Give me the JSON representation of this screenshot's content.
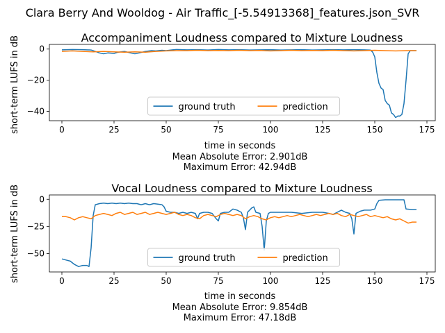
{
  "figure": {
    "suptitle": "Clara Berry And Wooldog - Air Traffic_[-5.54913368]_features.json_SVR"
  },
  "chart_data": [
    {
      "type": "line",
      "title": "Accompaniment Loudness compared to Mixture Loudness",
      "xlabel": "time in seconds",
      "ylabel": "short-term LUFS in dB",
      "xlim": [
        -6,
        179
      ],
      "ylim": [
        -46,
        3
      ],
      "xticks": [
        0,
        25,
        50,
        75,
        100,
        125,
        150,
        175
      ],
      "yticks": [
        0,
        -20,
        -40
      ],
      "legend": "lower-center",
      "stats": [
        "Mean Absolute Error: 2.901dB",
        "Maximum Error: 42.94dB"
      ],
      "series": [
        {
          "name": "ground truth",
          "color": "#1f77b4",
          "points": [
            [
              0,
              -0.5
            ],
            [
              5,
              -0.3
            ],
            [
              10,
              -0.4
            ],
            [
              14,
              -0.6
            ],
            [
              16,
              -1.5
            ],
            [
              18,
              -2.5
            ],
            [
              20,
              -3
            ],
            [
              22,
              -2.5
            ],
            [
              25,
              -2.8
            ],
            [
              27,
              -2
            ],
            [
              30,
              -1.5
            ],
            [
              33,
              -2.5
            ],
            [
              35,
              -3
            ],
            [
              37,
              -2.5
            ],
            [
              40,
              -1.5
            ],
            [
              43,
              -1
            ],
            [
              45,
              -1.2
            ],
            [
              48,
              -0.8
            ],
            [
              50,
              -1
            ],
            [
              53,
              -0.5
            ],
            [
              55,
              -0.3
            ],
            [
              60,
              -0.5
            ],
            [
              65,
              -0.4
            ],
            [
              70,
              -0.6
            ],
            [
              75,
              -0.3
            ],
            [
              80,
              -0.5
            ],
            [
              85,
              -0.4
            ],
            [
              90,
              -0.6
            ],
            [
              95,
              -0.5
            ],
            [
              100,
              -0.4
            ],
            [
              105,
              -0.6
            ],
            [
              110,
              -0.5
            ],
            [
              115,
              -0.4
            ],
            [
              120,
              -0.6
            ],
            [
              125,
              -0.5
            ],
            [
              130,
              -0.4
            ],
            [
              135,
              -0.5
            ],
            [
              140,
              -0.4
            ],
            [
              145,
              -0.5
            ],
            [
              148,
              -0.7
            ],
            [
              149,
              -2
            ],
            [
              150,
              -5
            ],
            [
              151,
              -15
            ],
            [
              152,
              -22
            ],
            [
              153,
              -25
            ],
            [
              154,
              -26
            ],
            [
              155,
              -33
            ],
            [
              156,
              -35
            ],
            [
              157,
              -36
            ],
            [
              158,
              -41
            ],
            [
              159,
              -42
            ],
            [
              160,
              -44
            ],
            [
              161,
              -43
            ],
            [
              162,
              -43
            ],
            [
              163,
              -42
            ],
            [
              164,
              -35
            ],
            [
              165,
              -20
            ],
            [
              166,
              -3
            ],
            [
              167,
              -1
            ],
            [
              170,
              -1
            ]
          ]
        },
        {
          "name": "prediction",
          "color": "#ff7f0e",
          "points": [
            [
              0,
              -1.5
            ],
            [
              5,
              -1.2
            ],
            [
              10,
              -1.5
            ],
            [
              15,
              -1.8
            ],
            [
              20,
              -1.5
            ],
            [
              25,
              -1.8
            ],
            [
              30,
              -2
            ],
            [
              35,
              -1.8
            ],
            [
              40,
              -2
            ],
            [
              45,
              -1.5
            ],
            [
              50,
              -1.2
            ],
            [
              55,
              -1
            ],
            [
              60,
              -1
            ],
            [
              65,
              -0.8
            ],
            [
              70,
              -1
            ],
            [
              75,
              -0.9
            ],
            [
              80,
              -1
            ],
            [
              85,
              -0.8
            ],
            [
              90,
              -1
            ],
            [
              95,
              -0.9
            ],
            [
              100,
              -1.2
            ],
            [
              105,
              -1
            ],
            [
              110,
              -0.8
            ],
            [
              115,
              -1
            ],
            [
              120,
              -0.9
            ],
            [
              125,
              -1
            ],
            [
              130,
              -0.8
            ],
            [
              135,
              -1
            ],
            [
              140,
              -1.2
            ],
            [
              145,
              -1
            ],
            [
              150,
              -0.8
            ],
            [
              155,
              -1
            ],
            [
              160,
              -1.2
            ],
            [
              165,
              -1
            ],
            [
              170,
              -1
            ]
          ]
        }
      ]
    },
    {
      "type": "line",
      "title": "Vocal Loudness compared to Mixture Loudness",
      "xlabel": "time in seconds",
      "ylabel": "short-term LUFS in dB",
      "xlim": [
        -6,
        179
      ],
      "ylim": [
        -67,
        4
      ],
      "xticks": [
        0,
        25,
        50,
        75,
        100,
        125,
        150,
        175
      ],
      "yticks": [
        0,
        -25,
        -50
      ],
      "legend": "lower-center",
      "stats": [
        "Mean Absolute Error: 9.854dB",
        "Maximum Error: 47.18dB"
      ],
      "series": [
        {
          "name": "ground truth",
          "color": "#1f77b4",
          "points": [
            [
              0,
              -55
            ],
            [
              2,
              -56
            ],
            [
              4,
              -57
            ],
            [
              6,
              -60
            ],
            [
              8,
              -62
            ],
            [
              10,
              -61
            ],
            [
              12,
              -61
            ],
            [
              13,
              -62
            ],
            [
              14,
              -45
            ],
            [
              15,
              -15
            ],
            [
              16,
              -5
            ],
            [
              18,
              -4
            ],
            [
              20,
              -3.5
            ],
            [
              22,
              -4
            ],
            [
              24,
              -3.5
            ],
            [
              26,
              -4
            ],
            [
              28,
              -3.5
            ],
            [
              30,
              -4
            ],
            [
              32,
              -3.5
            ],
            [
              34,
              -4
            ],
            [
              36,
              -4
            ],
            [
              38,
              -5
            ],
            [
              40,
              -4
            ],
            [
              42,
              -5
            ],
            [
              44,
              -4
            ],
            [
              46,
              -4.5
            ],
            [
              48,
              -5
            ],
            [
              49,
              -7
            ],
            [
              50,
              -11
            ],
            [
              52,
              -12
            ],
            [
              54,
              -12
            ],
            [
              56,
              -13
            ],
            [
              58,
              -12
            ],
            [
              60,
              -13
            ],
            [
              62,
              -12
            ],
            [
              64,
              -13
            ],
            [
              65,
              -18
            ],
            [
              66,
              -13
            ],
            [
              68,
              -12
            ],
            [
              70,
              -12
            ],
            [
              72,
              -13
            ],
            [
              74,
              -18
            ],
            [
              75,
              -20
            ],
            [
              76,
              -13
            ],
            [
              78,
              -12
            ],
            [
              80,
              -12
            ],
            [
              82,
              -9
            ],
            [
              84,
              -10
            ],
            [
              86,
              -12
            ],
            [
              87,
              -17
            ],
            [
              88,
              -28
            ],
            [
              89,
              -12
            ],
            [
              91,
              -8
            ],
            [
              92,
              -7
            ],
            [
              93,
              -12
            ],
            [
              95,
              -13
            ],
            [
              96,
              -25
            ],
            [
              97,
              -47
            ],
            [
              98,
              -20
            ],
            [
              99,
              -13
            ],
            [
              100,
              -12
            ],
            [
              105,
              -12
            ],
            [
              110,
              -12
            ],
            [
              115,
              -13
            ],
            [
              120,
              -12
            ],
            [
              125,
              -12
            ],
            [
              128,
              -13
            ],
            [
              130,
              -14
            ],
            [
              132,
              -12
            ],
            [
              134,
              -10
            ],
            [
              136,
              -12
            ],
            [
              138,
              -13
            ],
            [
              139,
              -18
            ],
            [
              140,
              -32
            ],
            [
              141,
              -13
            ],
            [
              143,
              -11
            ],
            [
              145,
              -10
            ],
            [
              148,
              -10
            ],
            [
              150,
              -9
            ],
            [
              151,
              -4
            ],
            [
              152,
              -1
            ],
            [
              155,
              -0.5
            ],
            [
              160,
              -0.5
            ],
            [
              164,
              -0.5
            ],
            [
              165,
              -9
            ],
            [
              168,
              -9.5
            ],
            [
              170,
              -9.5
            ]
          ]
        },
        {
          "name": "prediction",
          "color": "#ff7f0e",
          "points": [
            [
              0,
              -16
            ],
            [
              2,
              -16
            ],
            [
              4,
              -17
            ],
            [
              6,
              -19
            ],
            [
              8,
              -17
            ],
            [
              10,
              -16
            ],
            [
              12,
              -17
            ],
            [
              14,
              -18
            ],
            [
              16,
              -15
            ],
            [
              18,
              -14
            ],
            [
              20,
              -13
            ],
            [
              22,
              -14
            ],
            [
              24,
              -15
            ],
            [
              26,
              -13
            ],
            [
              28,
              -12
            ],
            [
              30,
              -14
            ],
            [
              32,
              -13
            ],
            [
              34,
              -12
            ],
            [
              36,
              -14
            ],
            [
              38,
              -13
            ],
            [
              40,
              -12
            ],
            [
              42,
              -14
            ],
            [
              44,
              -13
            ],
            [
              46,
              -12
            ],
            [
              48,
              -13
            ],
            [
              50,
              -14
            ],
            [
              52,
              -13
            ],
            [
              54,
              -12
            ],
            [
              56,
              -14
            ],
            [
              58,
              -15
            ],
            [
              60,
              -14
            ],
            [
              62,
              -15
            ],
            [
              64,
              -17
            ],
            [
              66,
              -18
            ],
            [
              68,
              -15
            ],
            [
              70,
              -14
            ],
            [
              72,
              -15
            ],
            [
              74,
              -16
            ],
            [
              76,
              -14
            ],
            [
              78,
              -13
            ],
            [
              80,
              -14
            ],
            [
              82,
              -15
            ],
            [
              84,
              -14
            ],
            [
              86,
              -15
            ],
            [
              88,
              -18
            ],
            [
              90,
              -16
            ],
            [
              92,
              -15
            ],
            [
              94,
              -16
            ],
            [
              96,
              -18
            ],
            [
              98,
              -19
            ],
            [
              100,
              -17
            ],
            [
              102,
              -16
            ],
            [
              104,
              -17
            ],
            [
              106,
              -16
            ],
            [
              108,
              -15
            ],
            [
              110,
              -16
            ],
            [
              112,
              -15
            ],
            [
              114,
              -14
            ],
            [
              116,
              -15
            ],
            [
              118,
              -16
            ],
            [
              120,
              -15
            ],
            [
              122,
              -14
            ],
            [
              124,
              -15
            ],
            [
              126,
              -14
            ],
            [
              128,
              -13
            ],
            [
              130,
              -14
            ],
            [
              132,
              -13
            ],
            [
              134,
              -15
            ],
            [
              136,
              -16
            ],
            [
              138,
              -14
            ],
            [
              140,
              -15
            ],
            [
              142,
              -16
            ],
            [
              144,
              -15
            ],
            [
              146,
              -14
            ],
            [
              148,
              -16
            ],
            [
              150,
              -15
            ],
            [
              152,
              -16
            ],
            [
              154,
              -17
            ],
            [
              156,
              -16
            ],
            [
              158,
              -18
            ],
            [
              160,
              -19
            ],
            [
              162,
              -18
            ],
            [
              164,
              -20
            ],
            [
              166,
              -22
            ],
            [
              168,
              -21
            ],
            [
              170,
              -21
            ]
          ]
        }
      ]
    }
  ]
}
